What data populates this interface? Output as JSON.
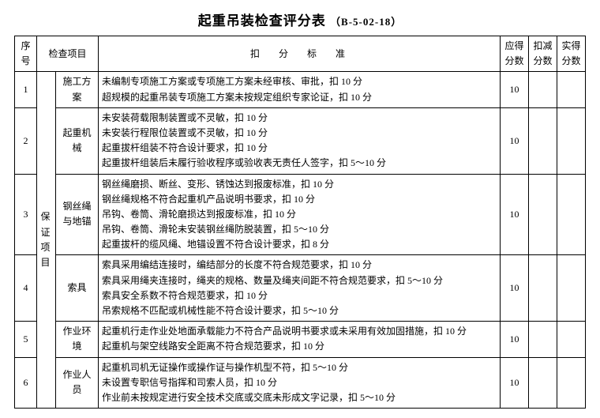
{
  "title_main": "起重吊装检查评分表",
  "title_code": "（B-5-02-18）",
  "headers": {
    "seq": "序号",
    "insp": "检查项目",
    "crit": "扣分标准",
    "due": "应得分数",
    "ded": "扣减分数",
    "act": "实得分数"
  },
  "category": "保证项目",
  "rows": [
    {
      "seq": "1",
      "item": "施工方案",
      "crit": "未编制专项施工方案或专项施工方案未经审核、审批，扣 10 分\n超规模的起重吊装专项施工方案未按规定组织专家论证，扣 10 分",
      "due": "10"
    },
    {
      "seq": "2",
      "item": "起重机械",
      "crit": "未安装荷载限制装置或不灵敏，扣 10 分\n未安装行程限位装置或不灵敏，扣 10 分\n起重拔杆组装不符合设计要求，扣 10 分\n起重拔杆组装后未履行验收程序或验收表无责任人签字，扣 5～10 分",
      "due": "10"
    },
    {
      "seq": "3",
      "item": "钢丝绳与地锚",
      "crit": "钢丝绳磨损、断丝、变形、锈蚀达到报废标准，扣 10 分\n钢丝绳规格不符合起重机产品说明书要求，扣 10 分\n吊钩、卷筒、滑轮磨损达到报废标准，扣 10 分\n吊钩、卷筒、滑轮未安装钢丝绳防脱装置，扣 5～10 分\n起重拔杆的缆风绳、地锚设置不符合设计要求，扣 8 分",
      "due": "10"
    },
    {
      "seq": "4",
      "item": "索具",
      "crit": "索具采用编结连接时，编结部分的长度不符合规范要求，扣 10 分\n索具采用绳夹连接时，绳夹的规格、数量及绳夹间距不符合规范要求，扣 5～10 分\n索具安全系数不符合规范要求，扣 10 分\n吊索规格不匹配或机械性能不符合设计要求，扣 5～10 分",
      "due": "10"
    },
    {
      "seq": "5",
      "item": "作业环境",
      "crit": "起重机行走作业处地面承载能力不符合产品说明书要求或未采用有效加固措施，扣 10 分\n起重机与架空线路安全距离不符合规范要求，扣 10 分",
      "due": "10"
    },
    {
      "seq": "6",
      "item": "作业人员",
      "crit": "起重机司机无证操作或操作证与操作机型不符，扣 5～10 分\n未设置专职信号指挥和司索人员，扣 10 分\n作业前未按规定进行安全技术交底或交底未形成文字记录，扣 5～10 分",
      "due": "10"
    }
  ]
}
